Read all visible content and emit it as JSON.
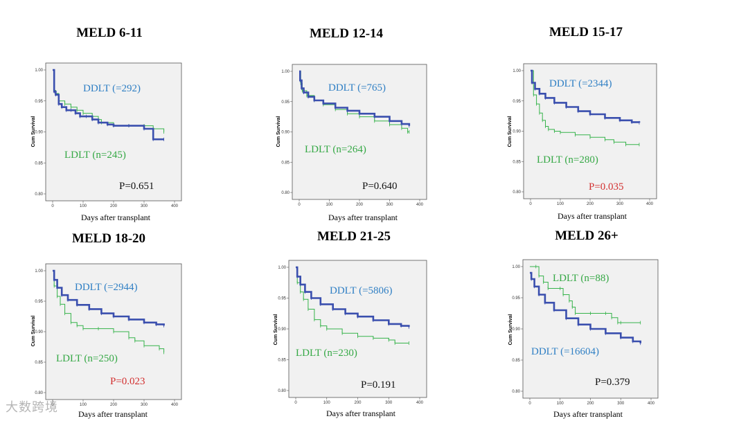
{
  "colors": {
    "ddlt": "#3a4fae",
    "ldlt": "#35b34a",
    "ddlt_text": "#2f7fc4",
    "ldlt_text": "#35a845",
    "p_sig": "#d22f2f",
    "p_ns": "#111111",
    "plot_bg": "#f1f1f1"
  },
  "watermark": "大数跨境",
  "chart_data": [
    {
      "type": "line",
      "title": "MELD 6-11",
      "xlabel": "Days after transplant",
      "ylabel": "Cum Survival",
      "xlim": [
        0,
        400
      ],
      "ylim": [
        0.8,
        1.0
      ],
      "xticks": [
        "0",
        "100",
        "200",
        "300",
        "400"
      ],
      "yticks": [
        "0.80",
        "0.85",
        "0.90",
        "0.95",
        "1.00"
      ],
      "series": [
        {
          "name": "DDLT",
          "label": "DDLT (=292)",
          "x": [
            0,
            5,
            10,
            20,
            30,
            45,
            60,
            75,
            90,
            110,
            130,
            150,
            180,
            200,
            250,
            300,
            330,
            365
          ],
          "y": [
            1.0,
            0.965,
            0.96,
            0.945,
            0.94,
            0.935,
            0.935,
            0.93,
            0.925,
            0.925,
            0.92,
            0.915,
            0.912,
            0.91,
            0.91,
            0.905,
            0.888,
            0.888
          ]
        },
        {
          "name": "LDLT",
          "label": "LDLT (n=245)",
          "x": [
            0,
            5,
            10,
            20,
            40,
            60,
            80,
            100,
            130,
            150,
            160,
            200,
            250,
            300,
            330,
            365
          ],
          "y": [
            1.0,
            0.967,
            0.962,
            0.95,
            0.945,
            0.94,
            0.935,
            0.93,
            0.925,
            0.92,
            0.915,
            0.91,
            0.91,
            0.91,
            0.905,
            0.9
          ]
        }
      ],
      "p_value": "P=0.651",
      "significant": false
    },
    {
      "type": "line",
      "title": "MELD 12-14",
      "xlabel": "Days after transplant",
      "ylabel": "Cum Survival",
      "xlim": [
        0,
        400
      ],
      "ylim": [
        0.8,
        1.0
      ],
      "xticks": [
        "0",
        "100",
        "200",
        "300",
        "400"
      ],
      "yticks": [
        "0.80",
        "0.85",
        "0.90",
        "0.95",
        "1.00"
      ],
      "series": [
        {
          "name": "DDLT",
          "label": "DDLT (=765)",
          "x": [
            0,
            3,
            8,
            15,
            30,
            50,
            80,
            120,
            160,
            200,
            250,
            300,
            340,
            365
          ],
          "y": [
            1.0,
            0.985,
            0.972,
            0.965,
            0.958,
            0.952,
            0.947,
            0.94,
            0.935,
            0.93,
            0.925,
            0.918,
            0.913,
            0.91
          ]
        },
        {
          "name": "LDLT",
          "label": "LDLT (n=264)",
          "x": [
            0,
            5,
            10,
            25,
            50,
            80,
            120,
            160,
            200,
            250,
            300,
            340,
            360,
            365
          ],
          "y": [
            1.0,
            0.98,
            0.968,
            0.96,
            0.952,
            0.945,
            0.937,
            0.93,
            0.925,
            0.918,
            0.912,
            0.906,
            0.9,
            0.9
          ]
        }
      ],
      "p_value": "P=0.640",
      "significant": false
    },
    {
      "type": "line",
      "title": "MELD 15-17",
      "xlabel": "Days after transplant",
      "ylabel": "Cum Survival",
      "xlim": [
        0,
        400
      ],
      "ylim": [
        0.8,
        1.0
      ],
      "xticks": [
        "0",
        "100",
        "200",
        "300",
        "400"
      ],
      "yticks": [
        "0.80",
        "0.85",
        "0.90",
        "0.95",
        "1.00"
      ],
      "series": [
        {
          "name": "DDLT",
          "label": "DDLT (=2344)",
          "x": [
            0,
            5,
            15,
            30,
            50,
            80,
            120,
            160,
            200,
            250,
            300,
            340,
            365
          ],
          "y": [
            1.0,
            0.98,
            0.97,
            0.962,
            0.955,
            0.947,
            0.94,
            0.933,
            0.928,
            0.922,
            0.918,
            0.915,
            0.914
          ]
        },
        {
          "name": "LDLT",
          "label": "LDLT (n=280)",
          "x": [
            0,
            10,
            20,
            30,
            40,
            50,
            60,
            80,
            100,
            150,
            200,
            250,
            280,
            320,
            365
          ],
          "y": [
            1.0,
            0.96,
            0.945,
            0.93,
            0.918,
            0.908,
            0.903,
            0.9,
            0.898,
            0.894,
            0.89,
            0.886,
            0.882,
            0.878,
            0.878
          ]
        }
      ],
      "p_value": "P=0.035",
      "significant": true
    },
    {
      "type": "line",
      "title": "MELD 18-20",
      "xlabel": "Days after transplant",
      "ylabel": "Cum Survival",
      "xlim": [
        0,
        400
      ],
      "ylim": [
        0.8,
        1.0
      ],
      "xticks": [
        "0",
        "100",
        "200",
        "300",
        "400"
      ],
      "yticks": [
        "0.80",
        "0.85",
        "0.90",
        "0.95",
        "1.00"
      ],
      "series": [
        {
          "name": "DDLT",
          "label": "DDLT (=2944)",
          "x": [
            0,
            5,
            15,
            30,
            50,
            80,
            120,
            160,
            200,
            250,
            300,
            340,
            365
          ],
          "y": [
            1.0,
            0.985,
            0.972,
            0.96,
            0.952,
            0.944,
            0.937,
            0.93,
            0.925,
            0.92,
            0.915,
            0.912,
            0.91
          ]
        },
        {
          "name": "LDLT",
          "label": "LDLT (n=250)",
          "x": [
            0,
            5,
            15,
            25,
            40,
            60,
            80,
            100,
            150,
            200,
            250,
            270,
            300,
            350,
            365
          ],
          "y": [
            1.0,
            0.975,
            0.958,
            0.945,
            0.93,
            0.915,
            0.91,
            0.905,
            0.905,
            0.9,
            0.89,
            0.885,
            0.877,
            0.872,
            0.866
          ]
        }
      ],
      "p_value": "P=0.023",
      "significant": true
    },
    {
      "type": "line",
      "title": "MELD 21-25",
      "xlabel": "Days after transplant",
      "ylabel": "Cum Survival",
      "xlim": [
        0,
        400
      ],
      "ylim": [
        0.8,
        1.0
      ],
      "xticks": [
        "0",
        "100",
        "200",
        "300",
        "400"
      ],
      "yticks": [
        "0.80",
        "0.85",
        "0.90",
        "0.95",
        "1.00"
      ],
      "series": [
        {
          "name": "DDLT",
          "label": "DDLT (=5806)",
          "x": [
            0,
            5,
            15,
            30,
            50,
            80,
            120,
            160,
            200,
            250,
            300,
            340,
            365
          ],
          "y": [
            1.0,
            0.985,
            0.972,
            0.96,
            0.95,
            0.94,
            0.932,
            0.925,
            0.92,
            0.914,
            0.908,
            0.905,
            0.903
          ]
        },
        {
          "name": "LDLT",
          "label": "LDLT (n=230)",
          "x": [
            0,
            5,
            15,
            25,
            40,
            60,
            80,
            100,
            150,
            200,
            250,
            300,
            320,
            365
          ],
          "y": [
            1.0,
            0.975,
            0.96,
            0.948,
            0.932,
            0.915,
            0.905,
            0.9,
            0.893,
            0.888,
            0.885,
            0.882,
            0.877,
            0.877
          ]
        }
      ],
      "p_value": "P=0.191",
      "significant": false
    },
    {
      "type": "line",
      "title": "MELD 26+",
      "xlabel": "Days after transplant",
      "ylabel": "Cum Survival",
      "xlim": [
        0,
        400
      ],
      "ylim": [
        0.8,
        1.0
      ],
      "xticks": [
        "0",
        "100",
        "200",
        "300",
        "400"
      ],
      "yticks": [
        "0.80",
        "0.85",
        "0.90",
        "0.95",
        "1.00"
      ],
      "series": [
        {
          "name": "DDLT",
          "label": "DDLT (=16604)",
          "x": [
            0,
            5,
            15,
            30,
            50,
            80,
            120,
            160,
            200,
            250,
            300,
            340,
            365
          ],
          "y": [
            0.99,
            0.98,
            0.968,
            0.955,
            0.942,
            0.93,
            0.917,
            0.907,
            0.9,
            0.893,
            0.886,
            0.88,
            0.877
          ]
        },
        {
          "name": "LDLT",
          "label": "LDLT (n=88)",
          "x": [
            0,
            20,
            30,
            45,
            60,
            100,
            110,
            130,
            140,
            150,
            200,
            250,
            270,
            290,
            300,
            365
          ],
          "y": [
            1.0,
            1.0,
            0.985,
            0.975,
            0.965,
            0.965,
            0.955,
            0.945,
            0.935,
            0.925,
            0.925,
            0.925,
            0.918,
            0.91,
            0.91,
            0.91
          ]
        }
      ],
      "p_value": "P=0.379",
      "significant": false
    }
  ]
}
